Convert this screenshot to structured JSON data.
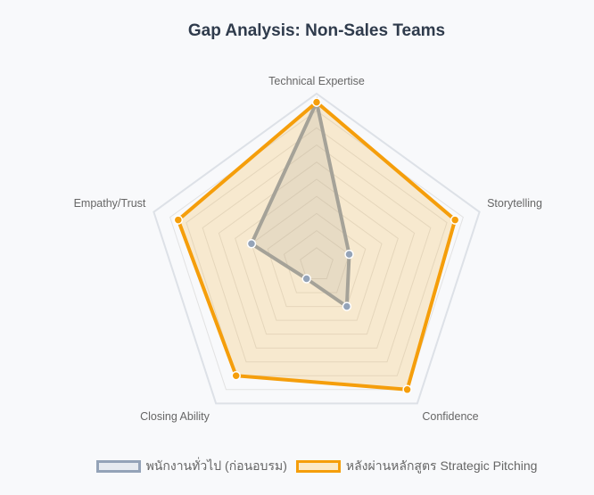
{
  "chart_data": {
    "type": "radar",
    "title": "Gap Analysis: Non-Sales Teams",
    "axes": [
      "Technical Expertise",
      "Storytelling",
      "Confidence",
      "Closing Ability",
      "Empathy/Trust"
    ],
    "range": [
      0,
      10
    ],
    "grid_steps": 10,
    "legend_position": "bottom",
    "series": [
      {
        "name": "พนักงานทั่วไป (ก่อนอบรม)",
        "values": [
          9.5,
          2,
          3,
          1,
          4
        ],
        "color": "#94a3b8",
        "fill": "rgba(148,163,184,0.2)"
      },
      {
        "name": "หลังผ่านหลักสูตร Strategic Pitching",
        "values": [
          9.5,
          8.5,
          9,
          8,
          8.5
        ],
        "color": "#f59e0b",
        "fill": "rgba(245,158,11,0.18)"
      }
    ]
  }
}
